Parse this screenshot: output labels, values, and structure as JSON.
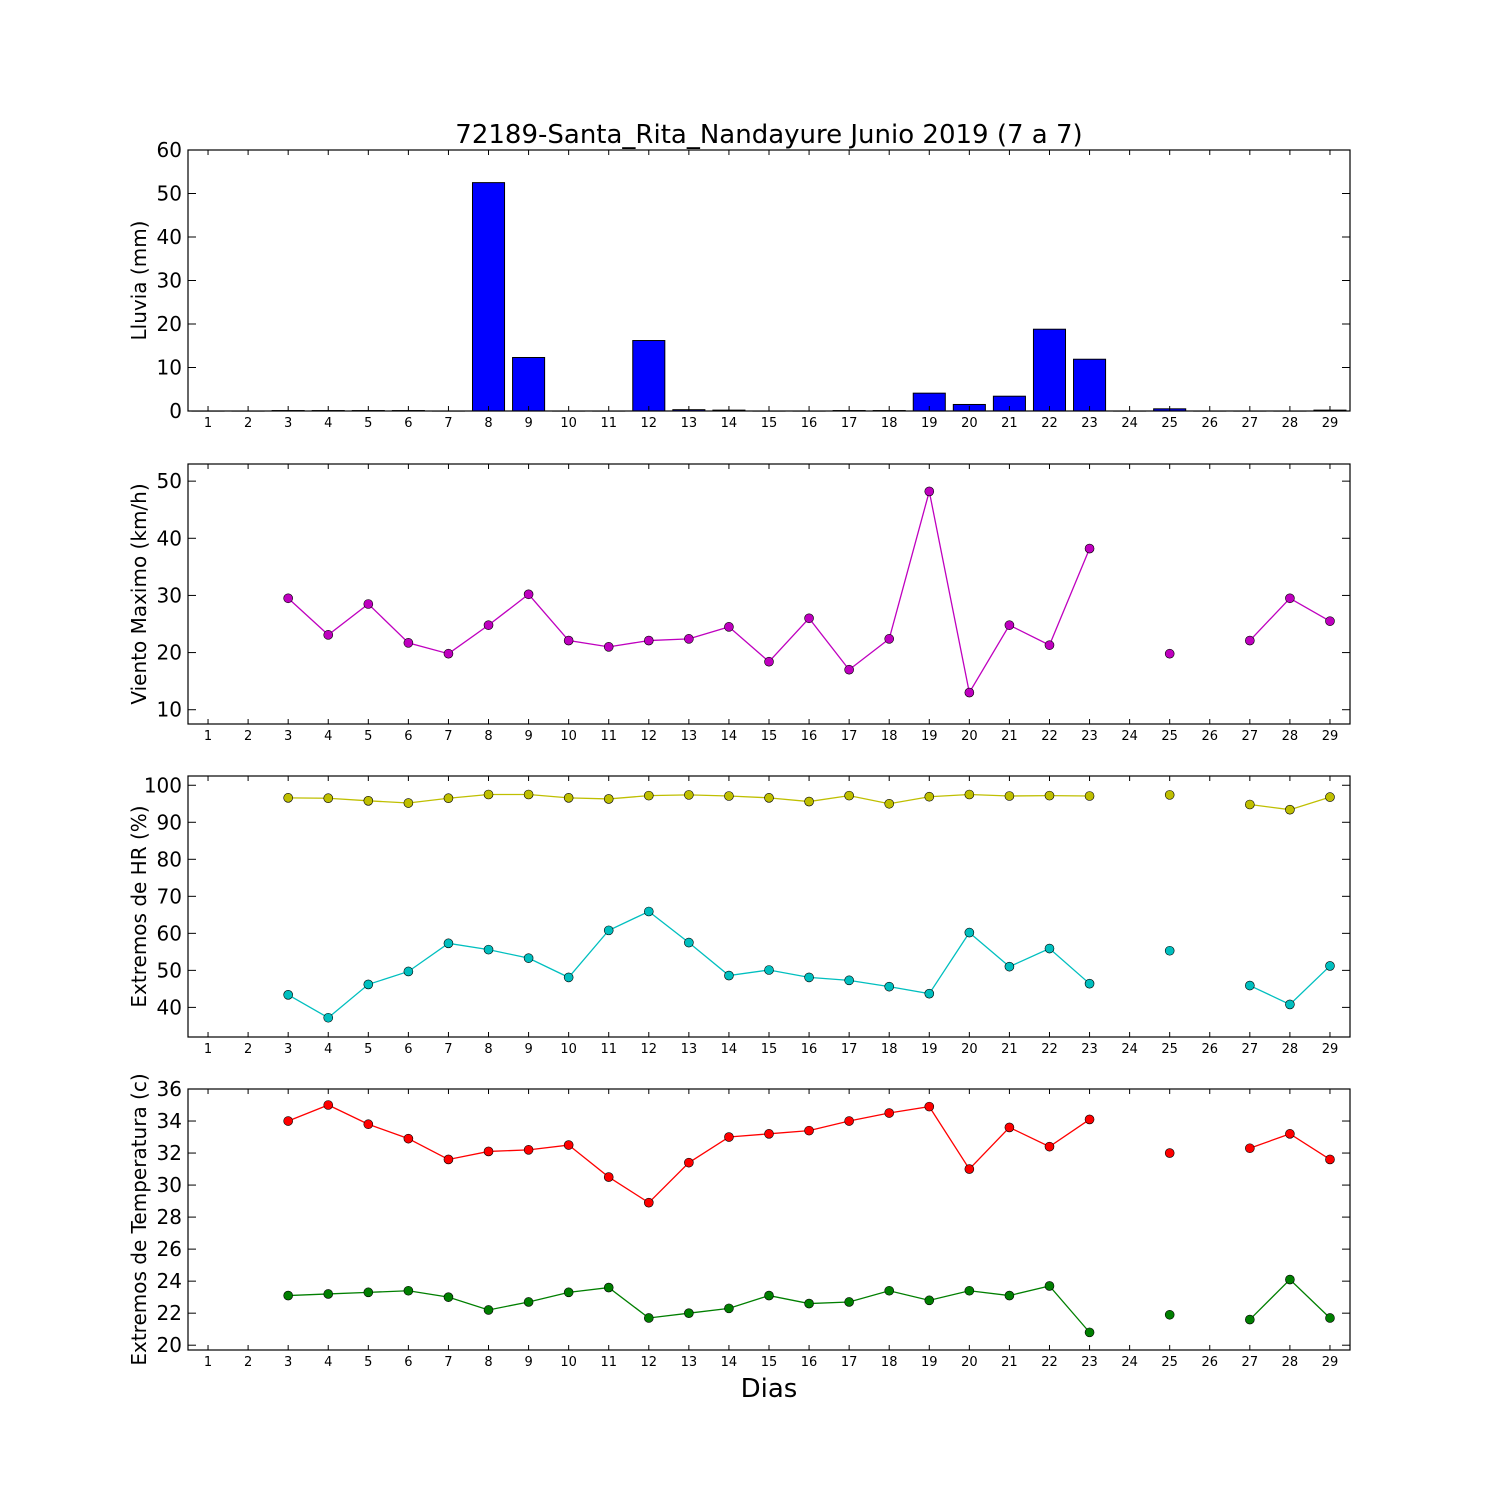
{
  "figure": {
    "title": "72189-Santa_Rita_Nandayure Junio 2019  (7 a 7)",
    "xlabel": "Dias"
  },
  "chart_data": [
    {
      "type": "bar",
      "ylabel": "Lluvia (mm)",
      "ylim": [
        0,
        60
      ],
      "yticks": [
        0,
        10,
        20,
        30,
        40,
        50,
        60
      ],
      "xlim": [
        0.5,
        29.5
      ],
      "x": [
        1,
        2,
        3,
        4,
        5,
        6,
        7,
        8,
        9,
        10,
        11,
        12,
        13,
        14,
        15,
        16,
        17,
        18,
        19,
        20,
        21,
        22,
        23,
        24,
        25,
        26,
        27,
        28,
        29
      ],
      "series": [
        {
          "color": "#0000ff",
          "values": [
            0,
            0,
            0.1,
            0.1,
            0.1,
            0.1,
            0,
            52.5,
            12.3,
            0,
            0,
            16.2,
            0.3,
            0.2,
            0,
            0,
            0.1,
            0.1,
            4.1,
            1.5,
            3.4,
            18.8,
            11.9,
            0,
            0.5,
            0,
            0,
            0,
            0.2
          ]
        }
      ]
    },
    {
      "type": "line",
      "ylabel": "Viento Maximo (km/h)",
      "ylim": [
        7.5,
        53
      ],
      "yticks": [
        10,
        20,
        30,
        40,
        50
      ],
      "xlim": [
        0.5,
        29.5
      ],
      "x": [
        1,
        2,
        3,
        4,
        5,
        6,
        7,
        8,
        9,
        10,
        11,
        12,
        13,
        14,
        15,
        16,
        17,
        18,
        19,
        20,
        21,
        22,
        23,
        24,
        25,
        26,
        27,
        28,
        29
      ],
      "series": [
        {
          "color": "#bf00bf",
          "values": [
            null,
            null,
            29.5,
            23.1,
            28.5,
            21.7,
            19.8,
            24.8,
            30.2,
            22.1,
            21.0,
            22.1,
            22.4,
            24.5,
            18.4,
            26.0,
            17.0,
            22.4,
            48.2,
            13.0,
            24.8,
            21.3,
            38.2,
            null,
            19.8,
            null,
            22.1,
            29.5,
            25.5
          ]
        }
      ]
    },
    {
      "type": "line",
      "ylabel": "Extremos de HR (%)",
      "ylim": [
        32,
        102.5
      ],
      "yticks": [
        40,
        50,
        60,
        70,
        80,
        90,
        100
      ],
      "xlim": [
        0.5,
        29.5
      ],
      "x": [
        1,
        2,
        3,
        4,
        5,
        6,
        7,
        8,
        9,
        10,
        11,
        12,
        13,
        14,
        15,
        16,
        17,
        18,
        19,
        20,
        21,
        22,
        23,
        24,
        25,
        26,
        27,
        28,
        29
      ],
      "series": [
        {
          "color": "#bfbf00",
          "values": [
            null,
            null,
            96.6,
            96.5,
            95.8,
            95.2,
            96.5,
            97.5,
            97.5,
            96.6,
            96.3,
            97.2,
            97.4,
            97.1,
            96.6,
            95.6,
            97.2,
            95.0,
            96.9,
            97.5,
            97.1,
            97.2,
            97.1,
            null,
            97.4,
            null,
            94.8,
            93.4,
            96.8
          ]
        },
        {
          "color": "#00bfbf",
          "values": [
            null,
            null,
            43.4,
            37.2,
            46.2,
            49.7,
            57.3,
            55.6,
            53.3,
            48.1,
            60.8,
            65.9,
            57.5,
            48.6,
            50.1,
            48.1,
            47.3,
            45.6,
            43.7,
            60.2,
            51.0,
            55.9,
            46.4,
            null,
            55.3,
            null,
            45.9,
            40.8,
            51.2
          ]
        }
      ]
    },
    {
      "type": "line",
      "ylabel": "Extremos de Temperatura (c)",
      "ylim": [
        19.7,
        36
      ],
      "yticks": [
        20,
        22,
        24,
        26,
        28,
        30,
        32,
        34,
        36
      ],
      "xlim": [
        0.5,
        29.5
      ],
      "x": [
        1,
        2,
        3,
        4,
        5,
        6,
        7,
        8,
        9,
        10,
        11,
        12,
        13,
        14,
        15,
        16,
        17,
        18,
        19,
        20,
        21,
        22,
        23,
        24,
        25,
        26,
        27,
        28,
        29
      ],
      "series": [
        {
          "color": "#ff0000",
          "values": [
            null,
            null,
            34.0,
            35.0,
            33.8,
            32.9,
            31.6,
            32.1,
            32.2,
            32.5,
            30.5,
            28.9,
            31.4,
            33.0,
            33.2,
            33.4,
            34.0,
            34.5,
            34.9,
            31.0,
            33.6,
            32.4,
            34.1,
            null,
            32.0,
            null,
            32.3,
            33.2,
            31.6
          ]
        },
        {
          "color": "#007f00",
          "values": [
            null,
            null,
            23.1,
            23.2,
            23.3,
            23.4,
            23.0,
            22.2,
            22.7,
            23.3,
            23.6,
            21.7,
            22.0,
            22.3,
            23.1,
            22.6,
            22.7,
            23.4,
            22.8,
            23.4,
            23.1,
            23.7,
            20.8,
            null,
            21.9,
            null,
            21.6,
            24.1,
            21.7
          ]
        }
      ]
    }
  ]
}
